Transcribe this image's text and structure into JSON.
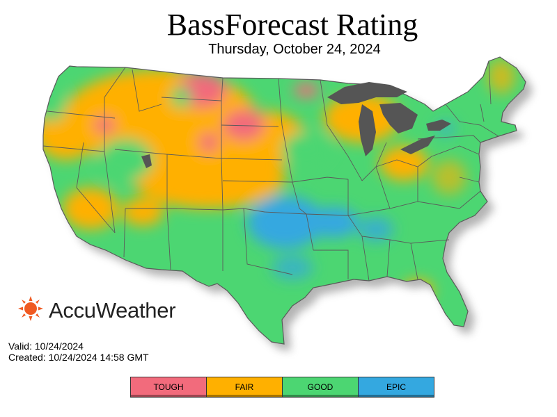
{
  "header": {
    "title": "BassForecast Rating",
    "date": "Thursday, October 24, 2024"
  },
  "brand": {
    "name": "AccuWeather",
    "icon": "sun-icon",
    "color": "#f05a22"
  },
  "meta": {
    "valid": "Valid: 10/24/2024",
    "created": "Created: 10/24/2024 14:58 GMT"
  },
  "legend": [
    {
      "label": "TOUGH",
      "color": "#f26b7c"
    },
    {
      "label": "FAIR",
      "color": "#ffb000"
    },
    {
      "label": "GOOD",
      "color": "#4cd672"
    },
    {
      "label": "EPIC",
      "color": "#34a8e0"
    }
  ],
  "map": {
    "background_color": "#4cd672",
    "lake_color": "#555555",
    "border_color": "#5a5a5a"
  }
}
